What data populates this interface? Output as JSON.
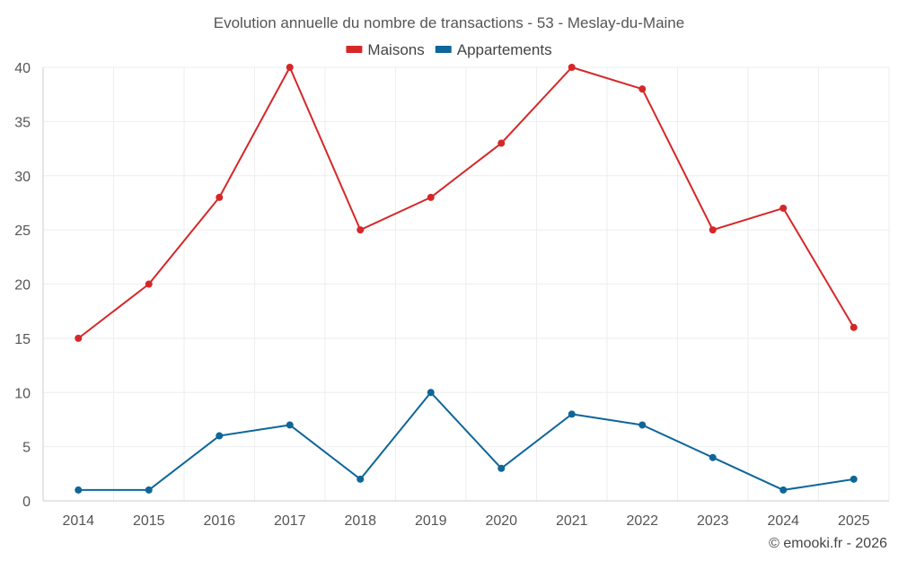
{
  "chart_data": {
    "type": "line",
    "title": "Evolution annuelle du nombre de transactions - 53 - Meslay-du-Maine",
    "categories": [
      "2014",
      "2015",
      "2016",
      "2017",
      "2018",
      "2019",
      "2020",
      "2021",
      "2022",
      "2023",
      "2024",
      "2025"
    ],
    "series": [
      {
        "name": "Maisons",
        "color": "#d62728",
        "values": [
          15,
          20,
          28,
          40,
          25,
          28,
          33,
          40,
          38,
          25,
          27,
          16
        ]
      },
      {
        "name": "Appartements",
        "color": "#0e6699",
        "values": [
          1,
          1,
          6,
          7,
          2,
          10,
          3,
          8,
          7,
          4,
          1,
          2
        ]
      }
    ],
    "ylim": [
      0,
      40
    ],
    "yticks": [
      0,
      5,
      10,
      15,
      20,
      25,
      30,
      35,
      40
    ],
    "xlabel": "",
    "ylabel": "",
    "grid": true,
    "legend_position": "top-center"
  },
  "credit": "© emooki.fr - 2026"
}
